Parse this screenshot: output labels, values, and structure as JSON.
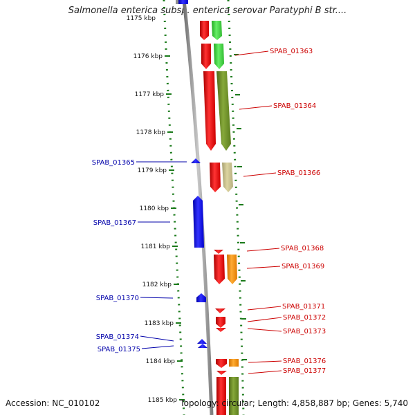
{
  "title": "Salmonella enterica subsp. enterica serovar Paratyphi B str....",
  "footer": {
    "accession": "Accession: NC_010102",
    "topology": "Topology: circular; Length: 4,858,887 bp; Genes: 5,740"
  },
  "ruler": {
    "top_label": "1175 kbp",
    "ticks": [
      "1176 kbp",
      "1177 kbp",
      "1178 kbp",
      "1179 kbp",
      "1180 kbp",
      "1181 kbp",
      "1182 kbp",
      "1183 kbp",
      "1184 kbp",
      "1185 kbp"
    ]
  },
  "colors": {
    "reverse_strand": "#0000ff",
    "forward_strand": "#ff0000",
    "backbone": "#909090",
    "tick_green": "#1a7a1a",
    "label_blue": "#0000aa",
    "label_red": "#cc0000",
    "cog_light_green": "#44dd44",
    "cog_olive": "#6b8e23",
    "cog_khaki": "#c8c08a",
    "cog_orange": "#ff8c00"
  },
  "genes_left": [
    "SPAB_01365",
    "SPAB_01367",
    "SPAB_01370",
    "SPAB_01374",
    "SPAB_01375"
  ],
  "genes_right": [
    "SPAB_01363",
    "SPAB_01364",
    "SPAB_01366",
    "SPAB_01368",
    "SPAB_01369",
    "SPAB_01371",
    "SPAB_01372",
    "SPAB_01373",
    "SPAB_01376",
    "SPAB_01377"
  ]
}
